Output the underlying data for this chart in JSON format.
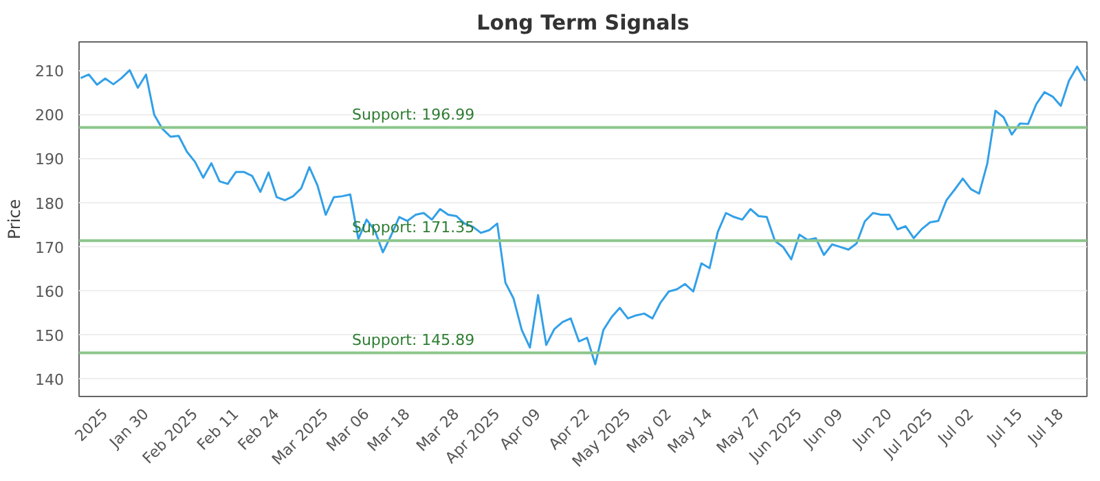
{
  "chart_data": {
    "type": "line",
    "title": "Long Term Signals",
    "ylabel": "Price",
    "categories": [
      null,
      null,
      null,
      "2025",
      null,
      null,
      null,
      null,
      "Jan 30",
      null,
      null,
      null,
      null,
      null,
      "Feb 2025",
      null,
      null,
      null,
      null,
      "Feb 11",
      null,
      null,
      null,
      null,
      "Feb 24",
      null,
      null,
      null,
      null,
      null,
      "Mar 2025",
      null,
      null,
      null,
      null,
      "Mar 06",
      null,
      null,
      null,
      null,
      "Mar 18",
      null,
      null,
      null,
      null,
      null,
      "Mar 28",
      null,
      null,
      null,
      null,
      "Apr 2025",
      null,
      null,
      null,
      null,
      "Apr 09",
      null,
      null,
      null,
      null,
      null,
      "Apr 22",
      null,
      null,
      null,
      null,
      "May 2025",
      null,
      null,
      null,
      null,
      "May 02",
      null,
      null,
      null,
      null,
      "May 14",
      null,
      null,
      null,
      null,
      null,
      "May 27",
      null,
      null,
      null,
      null,
      "Jun 2025",
      null,
      null,
      null,
      null,
      "Jun 09",
      null,
      null,
      null,
      null,
      null,
      "Jun 20",
      null,
      null,
      null,
      null,
      "Jul 2025",
      null,
      null,
      null,
      null,
      "Jul 02",
      null,
      null,
      null,
      null,
      null,
      "Jul 15",
      null,
      null,
      null,
      null,
      "Jul 18",
      null,
      null,
      null
    ],
    "series": [
      {
        "color": "#32a0e8",
        "values": [
          208.2,
          209,
          206.7,
          208.1,
          206.8,
          208.2,
          210,
          206,
          209,
          199.9,
          196.7,
          194.9,
          195.1,
          191.5,
          189.2,
          185.6,
          188.9,
          184.8,
          184.2,
          186.9,
          186.9,
          186,
          182.4,
          186.8,
          181.2,
          180.5,
          181.4,
          183.2,
          188,
          183.8,
          177.2,
          181.2,
          181.4,
          181.8,
          171.7,
          176.1,
          173.7,
          168.7,
          172.5,
          176.7,
          175.8,
          177.2,
          177.6,
          176.1,
          178.5,
          177.2,
          176.9,
          175.2,
          174.5,
          173.1,
          173.7,
          175.2,
          161.8,
          158.2,
          151.1,
          147.1,
          159,
          147.7,
          151.3,
          152.9,
          153.7,
          148.5,
          149.3,
          143.3,
          151.1,
          154,
          156.1,
          153.7,
          154.4,
          154.8,
          153.7,
          157.3,
          159.8,
          160.3,
          161.5,
          159.8,
          166.2,
          165.1,
          173.3,
          177.6,
          176.7,
          176.1,
          178.5,
          176.9,
          176.7,
          171.3,
          169.9,
          167.1,
          172.7,
          171.5,
          171.9,
          168.1,
          170.5,
          169.9,
          169.3,
          170.7,
          175.7,
          177.6,
          177.2,
          177.2,
          173.9,
          174.6,
          171.9,
          174,
          175.5,
          175.8,
          180.5,
          182.9,
          185.4,
          183,
          182,
          188.8,
          200.8,
          199.3,
          195.4,
          197.9,
          197.8,
          202.3,
          205,
          204,
          201.9,
          207.6,
          210.8,
          207.6
        ]
      }
    ],
    "ylim": [
      136,
      216.4
    ],
    "yticks": [
      140,
      150,
      160,
      170,
      180,
      190,
      200,
      210
    ],
    "grid": "y",
    "marker": "none",
    "line_style": "solid",
    "ref_lines": [
      {
        "axis": "y",
        "value": 196.99,
        "label": "Support: 196.99",
        "color": "#8cc68c"
      },
      {
        "axis": "y",
        "value": 171.35,
        "label": "Support: 171.35",
        "color": "#8cc68c"
      },
      {
        "axis": "y",
        "value": 145.89,
        "label": "Support: 145.89",
        "color": "#8cc68c"
      }
    ]
  }
}
